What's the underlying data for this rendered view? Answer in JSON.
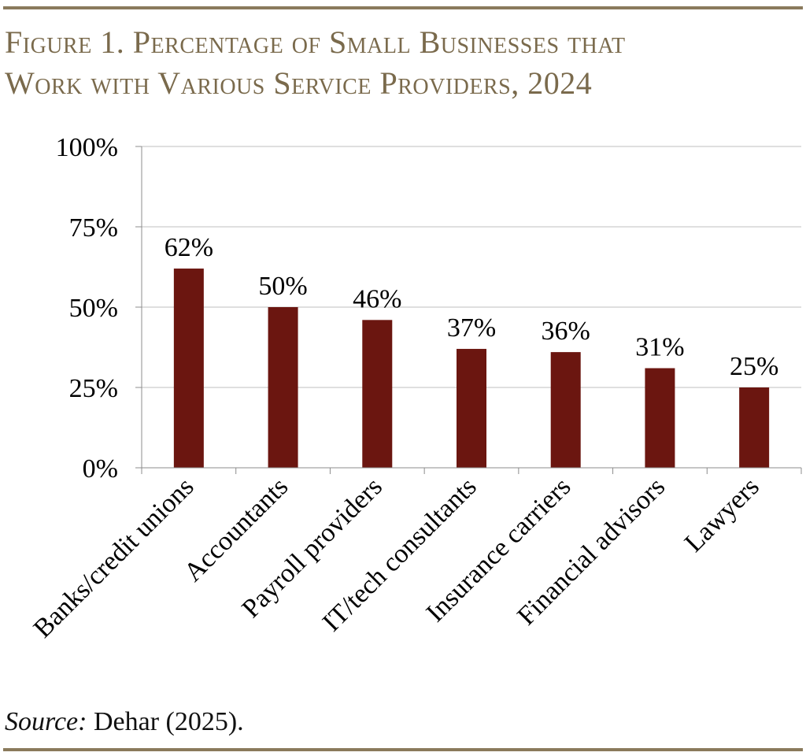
{
  "figure": {
    "title_line1": "Figure 1. Percentage of Small Businesses that",
    "title_line2": "Work with Various Service Providers, 2024"
  },
  "chart_data": {
    "type": "bar",
    "categories": [
      "Banks/credit unions",
      "Accountants",
      "Payroll providers",
      "IT/tech consultants",
      "Insurance carriers",
      "Financial advisors",
      "Lawyers"
    ],
    "values": [
      62,
      50,
      46,
      37,
      36,
      31,
      25
    ],
    "data_labels": [
      "62%",
      "50%",
      "46%",
      "37%",
      "36%",
      "31%",
      "25%"
    ],
    "ylim": [
      0,
      100
    ],
    "yticks": [
      0,
      25,
      50,
      75,
      100
    ],
    "ytick_labels": [
      "0%",
      "25%",
      "50%",
      "75%",
      "100%"
    ],
    "grid": true,
    "legend": "none"
  },
  "source": {
    "label": "Source:",
    "text": " Dehar (2025)."
  },
  "colors": {
    "bar": "#6b1610",
    "rule": "#8a7a5c",
    "title": "#7a6a4c",
    "grid": "#bfbfbf",
    "axis": "#8c8c8c"
  }
}
